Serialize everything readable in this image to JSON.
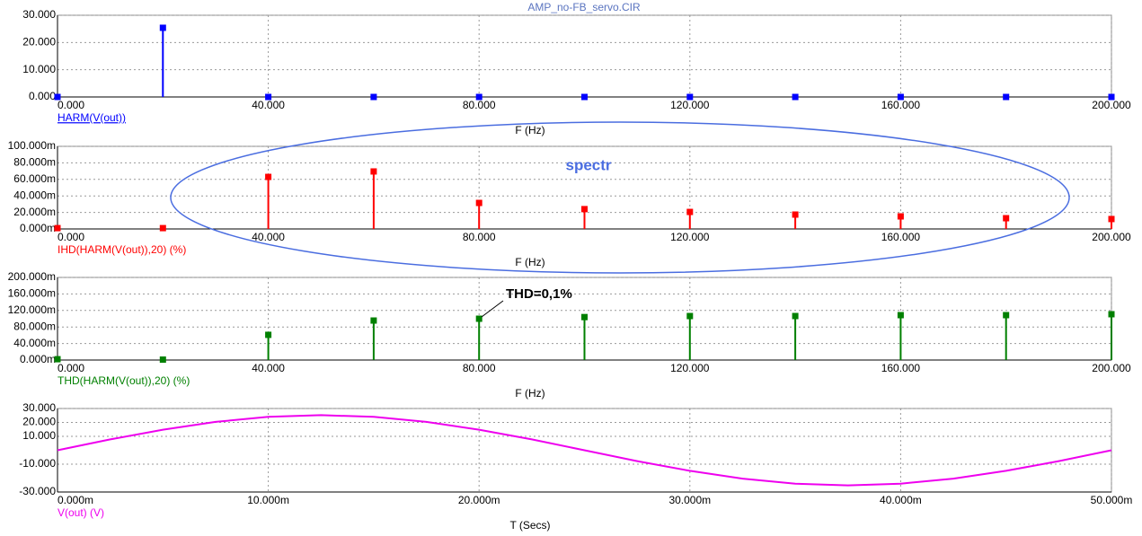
{
  "chart_data": [
    {
      "type": "stem",
      "title": "AMP_no-FB_servo.CIR",
      "x_label": "F (Hz)",
      "grid": true,
      "x": [
        0,
        20,
        40,
        60,
        80,
        100,
        120,
        140,
        160,
        180,
        200
      ],
      "series": [
        {
          "name": "HARM(V(out))",
          "color": "#0000ff",
          "values": [
            0,
            25.4,
            0,
            0,
            0,
            0,
            0,
            0,
            0,
            0,
            0
          ]
        }
      ],
      "xlim": [
        0,
        200
      ],
      "xticks": [
        {
          "value": 0,
          "label": "0.000"
        },
        {
          "value": 40,
          "label": "40.000"
        },
        {
          "value": 80,
          "label": "80.000"
        },
        {
          "value": 120,
          "label": "120.000"
        },
        {
          "value": 160,
          "label": "160.000"
        },
        {
          "value": 200,
          "label": "200.000"
        }
      ],
      "ylim": [
        0,
        30
      ],
      "yticks": [
        {
          "value": 0,
          "label": "0.000"
        },
        {
          "value": 10,
          "label": "10.000"
        },
        {
          "value": 20,
          "label": "20.000"
        },
        {
          "value": 30,
          "label": "30.000"
        }
      ]
    },
    {
      "type": "stem",
      "x_label": "F (Hz)",
      "grid": true,
      "annotation": "spectr",
      "x": [
        0,
        20,
        40,
        60,
        80,
        100,
        120,
        140,
        160,
        180,
        200
      ],
      "series": [
        {
          "name": "IHD(HARM(V(out)),20) (%)",
          "color": "#ff0000",
          "values": [
            1,
            1,
            63,
            69.6,
            31.5,
            24,
            20.6,
            17.4,
            15.2,
            13,
            12
          ]
        }
      ],
      "xlim": [
        0,
        200
      ],
      "xticks": [
        {
          "value": 0,
          "label": "0.000"
        },
        {
          "value": 40,
          "label": "40.000"
        },
        {
          "value": 80,
          "label": "80.000"
        },
        {
          "value": 120,
          "label": "120.000"
        },
        {
          "value": 160,
          "label": "160.000"
        },
        {
          "value": 200,
          "label": "200.000"
        }
      ],
      "ylim": [
        0,
        100
      ],
      "yticks": [
        {
          "value": 0,
          "label": "0.000m"
        },
        {
          "value": 20,
          "label": "20.000m"
        },
        {
          "value": 40,
          "label": "40.000m"
        },
        {
          "value": 60,
          "label": "60.000m"
        },
        {
          "value": 80,
          "label": "80.000m"
        },
        {
          "value": 100,
          "label": "100.000m"
        }
      ]
    },
    {
      "type": "stem",
      "x_label": "F (Hz)",
      "grid": true,
      "annotation": "THD=0,1%",
      "x": [
        0,
        20,
        40,
        60,
        80,
        100,
        120,
        140,
        160,
        180,
        200
      ],
      "series": [
        {
          "name": "THD(HARM(V(out)),20) (%)",
          "color": "#008000",
          "values": [
            2,
            1,
            61,
            95.6,
            100,
            104,
            106.5,
            106.5,
            108.7,
            108.7,
            110.9
          ]
        }
      ],
      "xlim": [
        0,
        200
      ],
      "xticks": [
        {
          "value": 0,
          "label": "0.000"
        },
        {
          "value": 40,
          "label": "40.000"
        },
        {
          "value": 80,
          "label": "80.000"
        },
        {
          "value": 120,
          "label": "120.000"
        },
        {
          "value": 160,
          "label": "160.000"
        },
        {
          "value": 200,
          "label": "200.000"
        }
      ],
      "ylim": [
        0,
        200
      ],
      "yticks": [
        {
          "value": 0,
          "label": "0.000m"
        },
        {
          "value": 40,
          "label": "40.000m"
        },
        {
          "value": 80,
          "label": "80.000m"
        },
        {
          "value": 120,
          "label": "120.000m"
        },
        {
          "value": 160,
          "label": "160.000m"
        },
        {
          "value": 200,
          "label": "200.000m"
        }
      ]
    },
    {
      "type": "line",
      "x_label": "T (Secs)",
      "grid": true,
      "x": [
        0,
        2.5,
        5,
        7.5,
        10,
        12.5,
        15,
        17.5,
        20,
        22.5,
        25,
        27.5,
        30,
        32.5,
        35,
        37.5,
        40,
        42.5,
        45,
        47.5,
        50
      ],
      "series": [
        {
          "name": "V(out) (V)",
          "color": "#ee00ee",
          "values": [
            0,
            7.8,
            14.8,
            20.4,
            24,
            25.2,
            24,
            20.4,
            14.8,
            7.8,
            0,
            -7.8,
            -14.8,
            -20.4,
            -24,
            -25.2,
            -24,
            -20.4,
            -14.8,
            -7.8,
            0
          ]
        }
      ],
      "xlim": [
        0,
        50
      ],
      "xticks": [
        {
          "value": 0,
          "label": "0.000m"
        },
        {
          "value": 10,
          "label": "10.000m"
        },
        {
          "value": 20,
          "label": "20.000m"
        },
        {
          "value": 30,
          "label": "30.000m"
        },
        {
          "value": 40,
          "label": "40.000m"
        },
        {
          "value": 50,
          "label": "50.000m"
        }
      ],
      "ylim": [
        -30,
        30
      ],
      "yticks": [
        {
          "value": -30,
          "label": "-30.000"
        },
        {
          "value": -10,
          "label": "-10.000"
        },
        {
          "value": 10,
          "label": "10.000"
        },
        {
          "value": 20,
          "label": "20.000"
        },
        {
          "value": 30,
          "label": "30.000"
        }
      ]
    }
  ]
}
